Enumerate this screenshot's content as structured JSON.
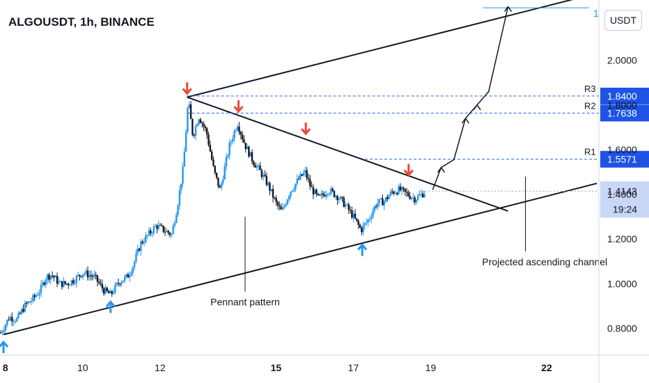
{
  "header": {
    "symbol": "ALGOUSDT, 1h, BINANCE",
    "currency_button": "USDT",
    "top_target_label": "1"
  },
  "chart_data": {
    "type": "candlestick",
    "title": "ALGOUSDT, 1h, BINANCE",
    "y_axis": {
      "unit": "USDT",
      "ticks": [
        "0.8000",
        "1.0000",
        "1.2000",
        "1.4000",
        "1.6000",
        "1.8000",
        "2.0000"
      ],
      "range": [
        0.68,
        2.27
      ]
    },
    "x_axis": {
      "ticks": [
        {
          "label": "8",
          "day": 8,
          "bold": true
        },
        {
          "label": "10",
          "day": 10,
          "bold": false
        },
        {
          "label": "12",
          "day": 12,
          "bold": false
        },
        {
          "label": "15",
          "day": 15,
          "bold": true
        },
        {
          "label": "17",
          "day": 17,
          "bold": false
        },
        {
          "label": "19",
          "day": 19,
          "bold": false
        },
        {
          "label": "22",
          "day": 22,
          "bold": true
        }
      ],
      "range": [
        7.86,
        23.35
      ]
    },
    "price_path": [
      [
        7.88,
        0.78
      ],
      [
        8.1,
        0.85
      ],
      [
        8.3,
        0.84
      ],
      [
        8.5,
        0.9
      ],
      [
        8.7,
        0.93
      ],
      [
        8.9,
        0.97
      ],
      [
        9.05,
        1.03
      ],
      [
        9.2,
        1.04
      ],
      [
        9.4,
        1.0
      ],
      [
        9.6,
        1.0
      ],
      [
        9.8,
        1.02
      ],
      [
        10.0,
        1.05
      ],
      [
        10.3,
        1.03
      ],
      [
        10.55,
        0.97
      ],
      [
        10.72,
        0.95
      ],
      [
        10.95,
        1.01
      ],
      [
        11.15,
        1.03
      ],
      [
        11.3,
        1.08
      ],
      [
        11.5,
        1.18
      ],
      [
        11.7,
        1.22
      ],
      [
        11.9,
        1.26
      ],
      [
        12.1,
        1.24
      ],
      [
        12.3,
        1.22
      ],
      [
        12.45,
        1.35
      ],
      [
        12.6,
        1.52
      ],
      [
        12.73,
        1.82
      ],
      [
        12.85,
        1.66
      ],
      [
        13.0,
        1.75
      ],
      [
        13.2,
        1.68
      ],
      [
        13.4,
        1.5
      ],
      [
        13.55,
        1.42
      ],
      [
        13.8,
        1.62
      ],
      [
        14.0,
        1.72
      ],
      [
        14.2,
        1.62
      ],
      [
        14.4,
        1.55
      ],
      [
        14.6,
        1.5
      ],
      [
        14.8,
        1.44
      ],
      [
        15.0,
        1.36
      ],
      [
        15.15,
        1.32
      ],
      [
        15.35,
        1.41
      ],
      [
        15.6,
        1.47
      ],
      [
        15.75,
        1.5
      ],
      [
        15.9,
        1.43
      ],
      [
        16.1,
        1.38
      ],
      [
        16.35,
        1.42
      ],
      [
        16.6,
        1.39
      ],
      [
        16.8,
        1.35
      ],
      [
        17.0,
        1.3
      ],
      [
        17.2,
        1.24
      ],
      [
        17.4,
        1.29
      ],
      [
        17.6,
        1.36
      ],
      [
        17.8,
        1.37
      ],
      [
        18.0,
        1.41
      ],
      [
        18.2,
        1.42
      ],
      [
        18.4,
        1.4
      ],
      [
        18.6,
        1.38
      ],
      [
        18.85,
        1.41
      ]
    ],
    "lines": [
      {
        "role": "upper channel",
        "from": [
          12.7,
          1.835
        ],
        "to": [
          23.3,
          2.3
        ]
      },
      {
        "role": "pennant upper",
        "from": [
          12.7,
          1.835
        ],
        "to": [
          21.0,
          1.325
        ]
      },
      {
        "role": "ascending support",
        "from": [
          7.95,
          0.772
        ],
        "to": [
          23.3,
          1.449
        ]
      }
    ],
    "levels": [
      {
        "name": "R3",
        "value": "1.8400",
        "price": 1.84
      },
      {
        "name": "R2",
        "value": "1.7638",
        "price": 1.7638
      },
      {
        "name": "R1",
        "value": "1.5571",
        "price": 1.5571
      }
    ],
    "current_price": {
      "value": "1.4143",
      "countdown": "19:24",
      "price": 1.4143
    },
    "target_price": 2.235,
    "projection_path": [
      [
        19.05,
        1.42
      ],
      [
        19.27,
        1.52
      ],
      [
        19.6,
        1.555
      ],
      [
        19.9,
        1.74
      ],
      [
        20.2,
        1.8
      ],
      [
        20.5,
        1.86
      ],
      [
        21.0,
        2.24
      ]
    ],
    "down_arrows": [
      [
        12.7,
        1.87
      ],
      [
        14.03,
        1.79
      ],
      [
        15.77,
        1.69
      ],
      [
        18.43,
        1.505
      ]
    ],
    "up_arrows": [
      [
        7.95,
        0.72
      ],
      [
        10.72,
        0.9
      ],
      [
        17.23,
        1.155
      ]
    ],
    "annotations": [
      {
        "text": "Pennant pattern",
        "anchor": [
          14.2,
          1.3
        ],
        "label_at": [
          14.2,
          0.89
        ]
      },
      {
        "text": "Projected ascending channel",
        "anchor": [
          21.45,
          1.48
        ],
        "label_at": [
          21.95,
          1.07
        ]
      }
    ]
  },
  "colors": {
    "candle_up": "#2196f3",
    "candle_down": "#131722",
    "level": "#2962ff",
    "level_tag": "#1e53e5",
    "current_tag": "#c8d7f5",
    "down_arrow": "#e8483c",
    "up_arrow": "#2196f3",
    "target_line": "#2196f3"
  }
}
